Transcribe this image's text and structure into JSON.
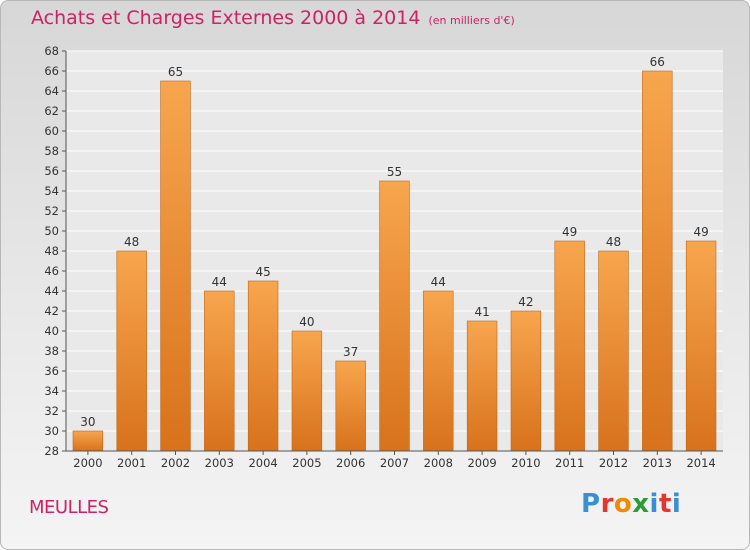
{
  "header": {
    "title": "Achats et Charges Externes 2000 à 2014",
    "subtitle": "(en milliers d'€)"
  },
  "footer": {
    "commune": "MEULLES",
    "logo": {
      "letters": [
        "P",
        "r",
        "o",
        "x",
        "i",
        "t",
        "i"
      ],
      "colors": [
        "#3a8fd4",
        "#e6342e",
        "#f08a00",
        "#2d9b3a",
        "#3a8fd4",
        "#e6342e",
        "#3a8fd4"
      ]
    }
  },
  "colors": {
    "bar_light": "#f7a64e",
    "bar_dark": "#d8721c",
    "bar_stroke": "#c46516",
    "grid": "#ffffff",
    "axis": "#555555"
  },
  "chart_data": {
    "type": "bar",
    "title": "Achats et Charges Externes 2000 à 2014",
    "subtitle": "(en milliers d'€)",
    "categories": [
      "2000",
      "2001",
      "2002",
      "2003",
      "2004",
      "2005",
      "2006",
      "2007",
      "2008",
      "2009",
      "2010",
      "2011",
      "2012",
      "2013",
      "2014"
    ],
    "values": [
      30,
      48,
      65,
      44,
      45,
      40,
      37,
      55,
      44,
      41,
      42,
      49,
      48,
      66,
      49
    ],
    "ylim": [
      28,
      68
    ],
    "ytick_step": 2,
    "grid": true,
    "xlabel": "",
    "ylabel": ""
  }
}
